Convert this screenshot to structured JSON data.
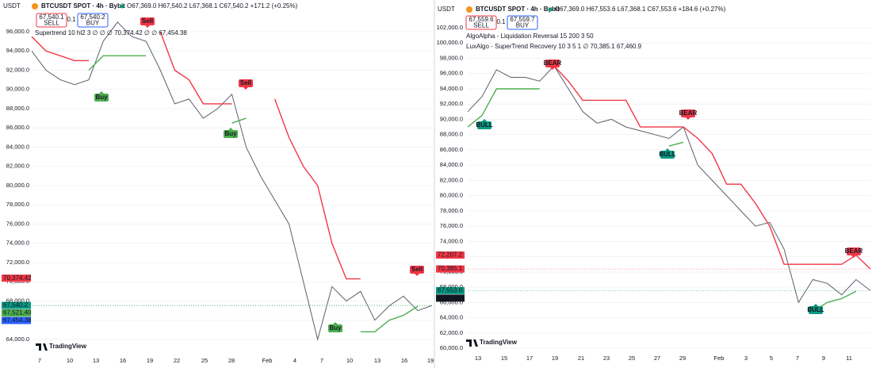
{
  "panels": [
    {
      "currency": "USDT",
      "title": "BTCUSDT SPOT · 4h · Bybit",
      "ohlc": "O67,369.0 H67,540.2 L67,368.1 C67,540.2 +171.2 (+0.25%)",
      "sell": {
        "price": "67,540.1",
        "label": "SELL"
      },
      "qty": "0.1",
      "buy": {
        "price": "67,540.2",
        "label": "BUY"
      },
      "indicators": [
        "Supertrend 10 hl2 3 ∅ ∅ ∅ 70,374.42 ∅ ∅ 67,454.38"
      ],
      "ylim": [
        63010,
        98640
      ],
      "yticks": [
        {
          "value": 64000,
          "label": "64,000.0"
        },
        {
          "value": 66000,
          "label": "66,000.0"
        },
        {
          "value": 68000,
          "label": "68,000.0"
        },
        {
          "value": 70000,
          "label": "70,000.0"
        },
        {
          "value": 72000,
          "label": "72,000.0"
        },
        {
          "value": 74000,
          "label": "74,000.0"
        },
        {
          "value": 76000,
          "label": "76,000.0"
        },
        {
          "value": 78000,
          "label": "78,000.0"
        },
        {
          "value": 80000,
          "label": "80,000.0"
        },
        {
          "value": 82000,
          "label": "82,000.0"
        },
        {
          "value": 84000,
          "label": "84,000.0"
        },
        {
          "value": 86000,
          "label": "86,000.0"
        },
        {
          "value": 88000,
          "label": "88,000.0"
        },
        {
          "value": 90000,
          "label": "90,000.0"
        },
        {
          "value": 92000,
          "label": "92,000.0"
        },
        {
          "value": 94000,
          "label": "94,000.0"
        },
        {
          "value": 96000,
          "label": "96,000.0"
        }
      ],
      "xlabels": [
        "7",
        "10",
        "13",
        "16",
        "19",
        "22",
        "25",
        "28",
        "Feb",
        "4",
        "7",
        "10",
        "13",
        "16",
        "19"
      ],
      "badges": [
        {
          "value": 70374.42,
          "label": "70,374.42",
          "color": "#f23645"
        },
        {
          "value": 67540.2,
          "label": "67,540.2",
          "color": "#089981"
        },
        {
          "value": 67521.4,
          "label": "67,521.40",
          "color": "#4caf50"
        },
        {
          "value": 67454.38,
          "label": "67,454.38",
          "color": "#2962ff"
        }
      ],
      "markers": [
        "Sell",
        "Buy",
        "Sell",
        "Buy",
        "Sell",
        "Buy"
      ],
      "price": [
        94000,
        92000,
        91000,
        90500,
        91000,
        95000,
        97000,
        95500,
        95000,
        92000,
        88500,
        89000,
        87000,
        88000,
        89500,
        84000,
        81000,
        78500,
        76000,
        70000,
        64000,
        69500,
        68000,
        69000,
        66000,
        67500,
        68500,
        67000,
        67540
      ],
      "bear": [
        95500,
        94000,
        93500,
        93000,
        93000,
        null,
        null,
        null,
        null,
        96000,
        92000,
        91000,
        88500,
        88500,
        88500,
        null,
        null,
        89000,
        85000,
        82000,
        80000,
        74000,
        70300,
        70300,
        null,
        null,
        null,
        null,
        70374
      ],
      "bull": [
        null,
        null,
        null,
        null,
        92000,
        93500,
        93500,
        93500,
        93500,
        null,
        null,
        null,
        null,
        null,
        86500,
        87000,
        null,
        null,
        null,
        null,
        null,
        null,
        null,
        64800,
        64800,
        66000,
        66500,
        67454,
        null
      ],
      "logo": "TradingView"
    },
    {
      "currency": "USDT",
      "title": "BTCUSDT SPOT · 4h · Bybit",
      "ohlc": "O67,369.0 H67,553.6 L67,368.1 C67,553.6 +184.6 (+0.27%)",
      "sell": {
        "price": "67,559.6",
        "label": "SELL"
      },
      "qty": "0.1",
      "buy": {
        "price": "67,559.7",
        "label": "BUY"
      },
      "indicators": [
        "AlgoAlpha - Liquidation Reversal 15 200 3 50",
        "LuxAlgo - SuperTrend Recovery 10 3 5 1 ∅ 70,385.1 67,460.9"
      ],
      "ylim": [
        59380,
        103040
      ],
      "yticks": [
        {
          "value": 60000,
          "label": "60,000.0"
        },
        {
          "value": 62000,
          "label": "62,000.0"
        },
        {
          "value": 64000,
          "label": "64,000.0"
        },
        {
          "value": 66000,
          "label": "66,000.0"
        },
        {
          "value": 68000,
          "label": "68,000.0"
        },
        {
          "value": 70000,
          "label": "70,000.0"
        },
        {
          "value": 72000,
          "label": "72,000.0"
        },
        {
          "value": 74000,
          "label": "74,000.0"
        },
        {
          "value": 76000,
          "label": "76,000.0"
        },
        {
          "value": 78000,
          "label": "78,000.0"
        },
        {
          "value": 80000,
          "label": "80,000.0"
        },
        {
          "value": 82000,
          "label": "82,000.0"
        },
        {
          "value": 84000,
          "label": "84,000.0"
        },
        {
          "value": 86000,
          "label": "86,000.0"
        },
        {
          "value": 88000,
          "label": "88,000.0"
        },
        {
          "value": 90000,
          "label": "90,000.0"
        },
        {
          "value": 92000,
          "label": "92,000.0"
        },
        {
          "value": 94000,
          "label": "94,000.0"
        },
        {
          "value": 96000,
          "label": "96,000.0"
        },
        {
          "value": 98000,
          "label": "98,000.0"
        },
        {
          "value": 100000,
          "label": "100,000.0"
        },
        {
          "value": 102000,
          "label": "102,000.0"
        }
      ],
      "xlabels": [
        "13",
        "15",
        "17",
        "19",
        "21",
        "23",
        "25",
        "27",
        "29",
        "Feb",
        "3",
        "5",
        "7",
        "9",
        "11"
      ],
      "badges": [
        {
          "value": 72207.2,
          "label": "72,207.2",
          "color": "#f23645"
        },
        {
          "value": 70385.1,
          "label": "70,385.1",
          "color": "#f23645"
        },
        {
          "value": 67553.6,
          "label": "67,553.6",
          "color": "#089981"
        },
        {
          "value": 67460.9,
          "label": "67,460.9",
          "color": "#131722"
        }
      ],
      "markers": [
        "BEAR",
        "BULL",
        "BEAR",
        "BULL",
        "BEAR",
        "BULL"
      ],
      "price": [
        91000,
        93000,
        96500,
        95500,
        95500,
        95000,
        97000,
        94000,
        91000,
        89500,
        90000,
        89000,
        88500,
        88000,
        87500,
        89000,
        84000,
        82000,
        80000,
        78000,
        76000,
        76500,
        73000,
        66000,
        69000,
        68500,
        67000,
        69000,
        67550
      ],
      "bear": [
        null,
        null,
        null,
        null,
        null,
        null,
        97000,
        95000,
        92500,
        92500,
        92500,
        92500,
        89000,
        89000,
        89000,
        89000,
        87500,
        85500,
        81500,
        81500,
        79000,
        76000,
        71000,
        71000,
        71000,
        71000,
        71000,
        72200,
        70385
      ],
      "bull": [
        89000,
        90500,
        94000,
        94000,
        94000,
        94000,
        null,
        null,
        null,
        null,
        null,
        null,
        null,
        null,
        86500,
        87000,
        null,
        null,
        null,
        null,
        null,
        null,
        null,
        null,
        64800,
        66000,
        66500,
        67461,
        null
      ],
      "logo": "TradingView"
    }
  ]
}
